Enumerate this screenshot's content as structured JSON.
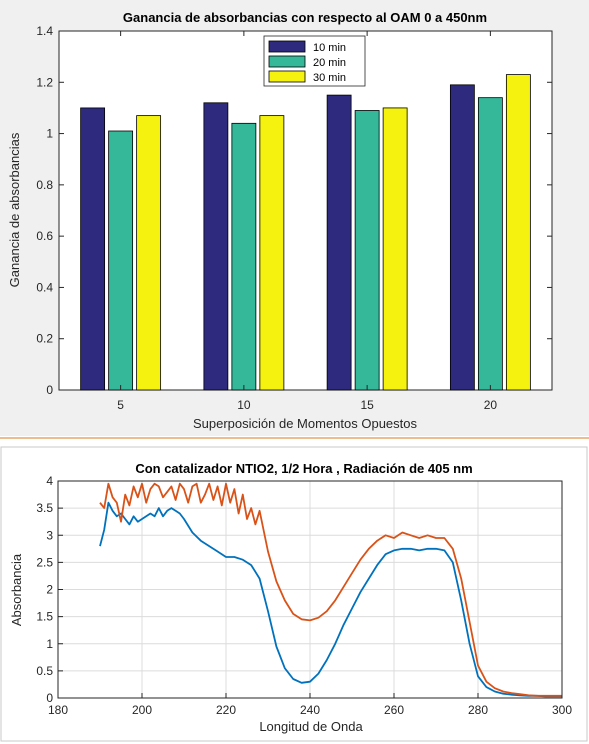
{
  "chart_data": [
    {
      "type": "bar",
      "title": "Ganancia de absorbancias con respecto al OAM 0 a 450nm",
      "xlabel": "Superposición de Momentos Opuestos",
      "ylabel": "Ganancia de absorbancias",
      "categories": [
        "5",
        "10",
        "15",
        "20"
      ],
      "ylim": [
        0,
        1.4
      ],
      "yticks": [
        "0",
        "0.2",
        "0.4",
        "0.6",
        "0.8",
        "1",
        "1.2",
        "1.4"
      ],
      "legend_position": "top-center",
      "series": [
        {
          "name": "10 min",
          "color": "#2e2a7e",
          "values": [
            1.1,
            1.12,
            1.15,
            1.19
          ]
        },
        {
          "name": "20 min",
          "color": "#35b89a",
          "values": [
            1.01,
            1.04,
            1.09,
            1.14
          ]
        },
        {
          "name": "30 min",
          "color": "#f4f20e",
          "values": [
            1.07,
            1.07,
            1.1,
            1.23
          ]
        }
      ]
    },
    {
      "type": "line",
      "title": "Con catalizador NTIO2, 1/2 Hora , Radiación de 405 nm",
      "xlabel": "Longitud de Onda",
      "ylabel": "Absorbancia",
      "xlim": [
        180,
        300
      ],
      "ylim": [
        0,
        4
      ],
      "xticks": [
        "180",
        "200",
        "220",
        "240",
        "260",
        "280",
        "300"
      ],
      "yticks": [
        "0",
        "0.5",
        "1",
        "1.5",
        "2",
        "2.5",
        "3",
        "3.5",
        "4"
      ],
      "grid": true,
      "series": [
        {
          "color": "#0072bd",
          "x": [
            190,
            191,
            192,
            193,
            194,
            195,
            196,
            197,
            198,
            199,
            200,
            201,
            202,
            203,
            204,
            205,
            206,
            207,
            208,
            209,
            210,
            212,
            214,
            216,
            218,
            220,
            222,
            224,
            226,
            228,
            230,
            232,
            234,
            236,
            238,
            240,
            242,
            244,
            246,
            248,
            250,
            252,
            254,
            256,
            258,
            260,
            262,
            264,
            266,
            268,
            270,
            272,
            274,
            276,
            278,
            280,
            282,
            284,
            286,
            288,
            290,
            292,
            294,
            296,
            298,
            300
          ],
          "y": [
            2.8,
            3.1,
            3.6,
            3.45,
            3.35,
            3.4,
            3.3,
            3.2,
            3.35,
            3.25,
            3.3,
            3.35,
            3.4,
            3.35,
            3.5,
            3.35,
            3.45,
            3.5,
            3.45,
            3.4,
            3.3,
            3.05,
            2.9,
            2.8,
            2.7,
            2.6,
            2.6,
            2.55,
            2.45,
            2.2,
            1.6,
            0.95,
            0.55,
            0.35,
            0.28,
            0.3,
            0.45,
            0.7,
            1.0,
            1.35,
            1.65,
            1.95,
            2.2,
            2.45,
            2.65,
            2.72,
            2.75,
            2.75,
            2.72,
            2.75,
            2.75,
            2.72,
            2.5,
            1.8,
            1.0,
            0.4,
            0.2,
            0.12,
            0.08,
            0.06,
            0.05,
            0.04,
            0.04,
            0.03,
            0.03,
            0.03
          ]
        },
        {
          "color": "#d95319",
          "x": [
            190,
            191,
            192,
            193,
            194,
            195,
            196,
            197,
            198,
            199,
            200,
            201,
            202,
            203,
            204,
            205,
            206,
            207,
            208,
            209,
            210,
            211,
            212,
            213,
            214,
            215,
            216,
            217,
            218,
            219,
            220,
            221,
            222,
            223,
            224,
            225,
            226,
            227,
            228,
            230,
            232,
            234,
            236,
            238,
            240,
            242,
            244,
            246,
            248,
            250,
            252,
            254,
            256,
            258,
            260,
            262,
            264,
            266,
            268,
            270,
            272,
            274,
            276,
            278,
            280,
            282,
            284,
            286,
            288,
            290,
            292,
            294,
            296,
            298,
            300
          ],
          "y": [
            3.6,
            3.5,
            3.95,
            3.7,
            3.6,
            3.25,
            3.75,
            3.55,
            3.9,
            3.7,
            3.95,
            3.6,
            3.85,
            3.95,
            3.9,
            3.7,
            3.8,
            3.9,
            3.65,
            3.95,
            3.85,
            3.6,
            3.9,
            3.95,
            3.6,
            3.75,
            3.95,
            3.65,
            3.9,
            3.55,
            3.95,
            3.6,
            3.85,
            3.4,
            3.75,
            3.3,
            3.5,
            3.2,
            3.45,
            2.7,
            2.15,
            1.8,
            1.55,
            1.45,
            1.43,
            1.48,
            1.6,
            1.8,
            2.05,
            2.3,
            2.55,
            2.75,
            2.9,
            3.0,
            2.95,
            3.05,
            3.0,
            2.95,
            3.0,
            2.95,
            2.95,
            2.75,
            2.2,
            1.4,
            0.6,
            0.3,
            0.18,
            0.12,
            0.09,
            0.07,
            0.05,
            0.04,
            0.04,
            0.04,
            0.04
          ]
        }
      ]
    }
  ]
}
